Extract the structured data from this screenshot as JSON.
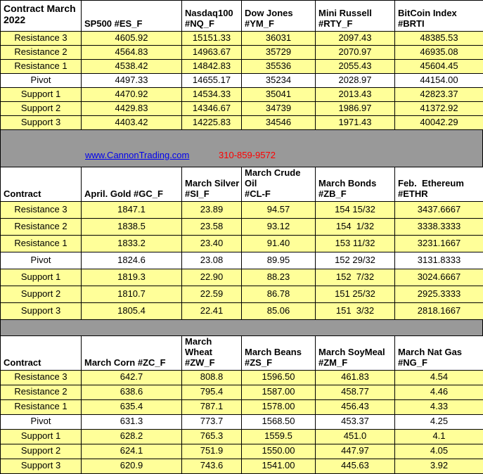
{
  "colors": {
    "row_highlight": "#FFFF99",
    "separator_gray": "#999999",
    "link_blue": "#0000EE",
    "phone_red": "#FF0000"
  },
  "banner": {
    "website": "www.CannonTrading.com",
    "phone": "310-859-9572"
  },
  "sections": [
    {
      "corner": "Contract March 2022",
      "columns": [
        "SP500 #ES_F",
        "Nasdaq100\n#NQ_F",
        "Dow Jones\n#YM_F",
        "Mini Russell\n#RTY_F",
        "BitCoin Index #BRTI"
      ],
      "rows": [
        {
          "label": "Resistance 3",
          "shaded": true,
          "values": [
            "4605.92",
            "15151.33",
            "36031",
            "2097.43",
            "48385.53"
          ]
        },
        {
          "label": "Resistance 2",
          "shaded": true,
          "values": [
            "4564.83",
            "14963.67",
            "35729",
            "2070.97",
            "46935.08"
          ]
        },
        {
          "label": "Resistance 1",
          "shaded": true,
          "values": [
            "4538.42",
            "14842.83",
            "35536",
            "2055.43",
            "45604.45"
          ]
        },
        {
          "label": "Pivot",
          "shaded": false,
          "values": [
            "4497.33",
            "14655.17",
            "35234",
            "2028.97",
            "44154.00"
          ]
        },
        {
          "label": "Support 1",
          "shaded": true,
          "values": [
            "4470.92",
            "14534.33",
            "35041",
            "2013.43",
            "42823.37"
          ]
        },
        {
          "label": "Support 2",
          "shaded": true,
          "values": [
            "4429.83",
            "14346.67",
            "34739",
            "1986.97",
            "41372.92"
          ]
        },
        {
          "label": "Support 3",
          "shaded": true,
          "values": [
            "4403.42",
            "14225.83",
            "34546",
            "1971.43",
            "40042.29"
          ]
        }
      ]
    },
    {
      "corner": "Contract",
      "columns": [
        "April. Gold #GC_F",
        "March Silver\n#SI_F",
        "March Crude Oil\n#CL-F",
        "March Bonds\n#ZB_F",
        "Feb.  Ethereum\n#ETHR"
      ],
      "rows": [
        {
          "label": "Resistance 3",
          "shaded": true,
          "values": [
            "1847.1",
            "23.89",
            "94.57",
            "154 15/32",
            "3437.6667"
          ]
        },
        {
          "label": "Resistance 2",
          "shaded": true,
          "values": [
            "1838.5",
            "23.58",
            "93.12",
            "154  1/32",
            "3338.3333"
          ]
        },
        {
          "label": "Resistance 1",
          "shaded": true,
          "values": [
            "1833.2",
            "23.40",
            "91.40",
            "153 11/32",
            "3231.1667"
          ]
        },
        {
          "label": "Pivot",
          "shaded": false,
          "values": [
            "1824.6",
            "23.08",
            "89.95",
            "152 29/32",
            "3131.8333"
          ]
        },
        {
          "label": "Support 1",
          "shaded": true,
          "values": [
            "1819.3",
            "22.90",
            "88.23",
            "152  7/32",
            "3024.6667"
          ]
        },
        {
          "label": "Support 2",
          "shaded": true,
          "values": [
            "1810.7",
            "22.59",
            "86.78",
            "151 25/32",
            "2925.3333"
          ]
        },
        {
          "label": "Support 3",
          "shaded": true,
          "values": [
            "1805.4",
            "22.41",
            "85.06",
            "151  3/32",
            "2818.1667"
          ]
        }
      ]
    },
    {
      "corner": "Contract",
      "columns": [
        "March Corn #ZC_F",
        "March  Wheat\n#ZW_F",
        "March Beans\n#ZS_F",
        "March SoyMeal\n#ZM_F",
        "March Nat Gas\n#NG_F"
      ],
      "rows": [
        {
          "label": "Resistance 3",
          "shaded": true,
          "values": [
            "642.7",
            "808.8",
            "1596.50",
            "461.83",
            "4.54"
          ]
        },
        {
          "label": "Resistance 2",
          "shaded": true,
          "values": [
            "638.6",
            "795.4",
            "1587.00",
            "458.77",
            "4.46"
          ]
        },
        {
          "label": "Resistance 1",
          "shaded": true,
          "values": [
            "635.4",
            "787.1",
            "1578.00",
            "456.43",
            "4.33"
          ]
        },
        {
          "label": "Pivot",
          "shaded": false,
          "values": [
            "631.3",
            "773.7",
            "1568.50",
            "453.37",
            "4.25"
          ]
        },
        {
          "label": "Support 1",
          "shaded": true,
          "values": [
            "628.2",
            "765.3",
            "1559.5",
            "451.0",
            "4.1"
          ]
        },
        {
          "label": "Support 2",
          "shaded": true,
          "values": [
            "624.1",
            "751.9",
            "1550.00",
            "447.97",
            "4.05"
          ]
        },
        {
          "label": "Support 3",
          "shaded": true,
          "values": [
            "620.9",
            "743.6",
            "1541.00",
            "445.63",
            "3.92"
          ]
        }
      ]
    }
  ]
}
